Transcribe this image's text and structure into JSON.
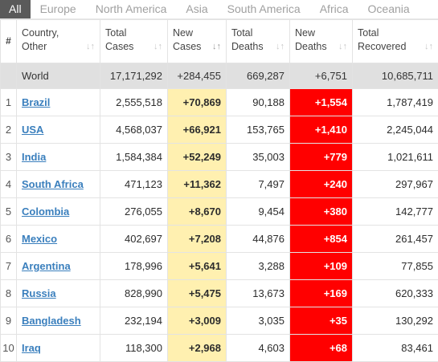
{
  "tabs": [
    "All",
    "Europe",
    "North America",
    "Asia",
    "South America",
    "Africa",
    "Oceania"
  ],
  "columns": {
    "index": "#",
    "country": [
      "Country,",
      "Other"
    ],
    "total_cases": [
      "Total",
      "Cases"
    ],
    "new_cases": [
      "New",
      "Cases"
    ],
    "total_deaths": [
      "Total",
      "Deaths"
    ],
    "new_deaths": [
      "New",
      "Deaths"
    ],
    "total_recovered": [
      "Total",
      "Recovered"
    ]
  },
  "sort_icon": "sort-arrows-icon",
  "world": {
    "country": "World",
    "total_cases": "17,171,292",
    "new_cases": "+284,455",
    "total_deaths": "669,287",
    "new_deaths": "+6,751",
    "total_recovered": "10,685,711"
  },
  "rows": [
    {
      "index": "1",
      "country": "Brazil",
      "total_cases": "2,555,518",
      "new_cases": "+70,869",
      "total_deaths": "90,188",
      "new_deaths": "+1,554",
      "total_recovered": "1,787,419"
    },
    {
      "index": "2",
      "country": "USA",
      "total_cases": "4,568,037",
      "new_cases": "+66,921",
      "total_deaths": "153,765",
      "new_deaths": "+1,410",
      "total_recovered": "2,245,044"
    },
    {
      "index": "3",
      "country": "India",
      "total_cases": "1,584,384",
      "new_cases": "+52,249",
      "total_deaths": "35,003",
      "new_deaths": "+779",
      "total_recovered": "1,021,611"
    },
    {
      "index": "4",
      "country": "South Africa",
      "total_cases": "471,123",
      "new_cases": "+11,362",
      "total_deaths": "7,497",
      "new_deaths": "+240",
      "total_recovered": "297,967"
    },
    {
      "index": "5",
      "country": "Colombia",
      "total_cases": "276,055",
      "new_cases": "+8,670",
      "total_deaths": "9,454",
      "new_deaths": "+380",
      "total_recovered": "142,777"
    },
    {
      "index": "6",
      "country": "Mexico",
      "total_cases": "402,697",
      "new_cases": "+7,208",
      "total_deaths": "44,876",
      "new_deaths": "+854",
      "total_recovered": "261,457"
    },
    {
      "index": "7",
      "country": "Argentina",
      "total_cases": "178,996",
      "new_cases": "+5,641",
      "total_deaths": "3,288",
      "new_deaths": "+109",
      "total_recovered": "77,855"
    },
    {
      "index": "8",
      "country": "Russia",
      "total_cases": "828,990",
      "new_cases": "+5,475",
      "total_deaths": "13,673",
      "new_deaths": "+169",
      "total_recovered": "620,333"
    },
    {
      "index": "9",
      "country": "Bangladesh",
      "total_cases": "232,194",
      "new_cases": "+3,009",
      "total_deaths": "3,035",
      "new_deaths": "+35",
      "total_recovered": "130,292"
    },
    {
      "index": "10",
      "country": "Iraq",
      "total_cases": "118,300",
      "new_cases": "+2,968",
      "total_deaths": "4,603",
      "new_deaths": "+68",
      "total_recovered": "83,461"
    }
  ],
  "colors": {
    "new_cases_bg": "#fff0b0",
    "new_deaths_bg": "#ff0000",
    "active_tab_bg": "#5a5a5a",
    "link": "#3a7fbd"
  }
}
